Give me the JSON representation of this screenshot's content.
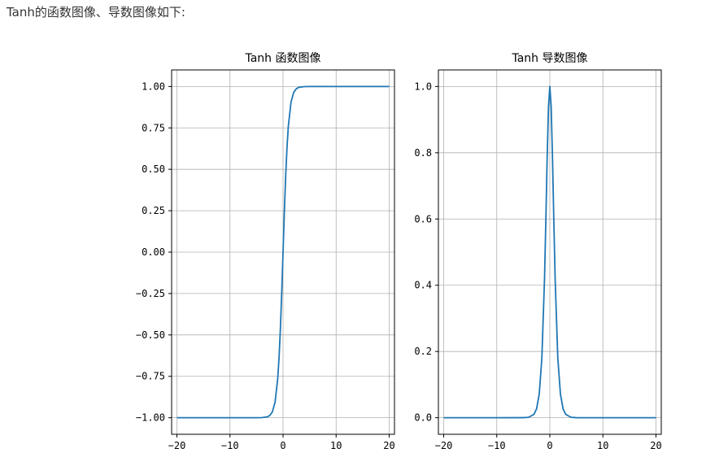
{
  "page": {
    "caption": "Tanh的函数图像、导数图像如下:"
  },
  "chart_data": [
    {
      "type": "line",
      "title": "Tanh 函数图像",
      "xlabel": "",
      "ylabel": "",
      "xlim": [
        -21,
        21
      ],
      "ylim": [
        -1.1,
        1.1
      ],
      "xticks": [
        -20,
        -10,
        0,
        10,
        20
      ],
      "xtick_labels": [
        "−20",
        "−10",
        "0",
        "10",
        "20"
      ],
      "yticks": [
        -1.0,
        -0.75,
        -0.5,
        -0.25,
        0.0,
        0.25,
        0.5,
        0.75,
        1.0
      ],
      "ytick_labels": [
        "−1.00",
        "−0.75",
        "−0.50",
        "−0.25",
        "0.00",
        "0.25",
        "0.50",
        "0.75",
        "1.00"
      ],
      "grid": true,
      "series": [
        {
          "color": "#1f77b4",
          "x": [
            -20,
            -10,
            -5,
            -4,
            -3,
            -2.5,
            -2,
            -1.5,
            -1,
            -0.75,
            -0.5,
            -0.25,
            0,
            0.25,
            0.5,
            0.75,
            1,
            1.5,
            2,
            2.5,
            3,
            4,
            5,
            10,
            20
          ],
          "y": [
            -1.0,
            -1.0,
            -0.9999,
            -0.9993,
            -0.9951,
            -0.9866,
            -0.964,
            -0.9051,
            -0.7616,
            -0.6351,
            -0.4621,
            -0.2449,
            0.0,
            0.2449,
            0.4621,
            0.6351,
            0.7616,
            0.9051,
            0.964,
            0.9866,
            0.9951,
            0.9993,
            0.9999,
            1.0,
            1.0
          ]
        }
      ]
    },
    {
      "type": "line",
      "title": "Tanh 导数图像",
      "xlabel": "",
      "ylabel": "",
      "xlim": [
        -21,
        21
      ],
      "ylim": [
        -0.05,
        1.05
      ],
      "xticks": [
        -20,
        -10,
        0,
        10,
        20
      ],
      "xtick_labels": [
        "−20",
        "−10",
        "0",
        "10",
        "20"
      ],
      "yticks": [
        0.0,
        0.2,
        0.4,
        0.6,
        0.8,
        1.0
      ],
      "ytick_labels": [
        "0.0",
        "0.2",
        "0.4",
        "0.6",
        "0.8",
        "1.0"
      ],
      "grid": true,
      "series": [
        {
          "color": "#1f77b4",
          "x": [
            -20,
            -10,
            -5,
            -4,
            -3,
            -2.5,
            -2,
            -1.5,
            -1,
            -0.75,
            -0.5,
            -0.25,
            0,
            0.25,
            0.5,
            0.75,
            1,
            1.5,
            2,
            2.5,
            3,
            4,
            5,
            10,
            20
          ],
          "y": [
            0.0,
            0.0,
            0.0002,
            0.0013,
            0.0099,
            0.0266,
            0.0707,
            0.1807,
            0.42,
            0.5966,
            0.7864,
            0.94,
            1.0,
            0.94,
            0.7864,
            0.5966,
            0.42,
            0.1807,
            0.0707,
            0.0266,
            0.0099,
            0.0013,
            0.0002,
            0.0,
            0.0
          ]
        }
      ]
    }
  ]
}
